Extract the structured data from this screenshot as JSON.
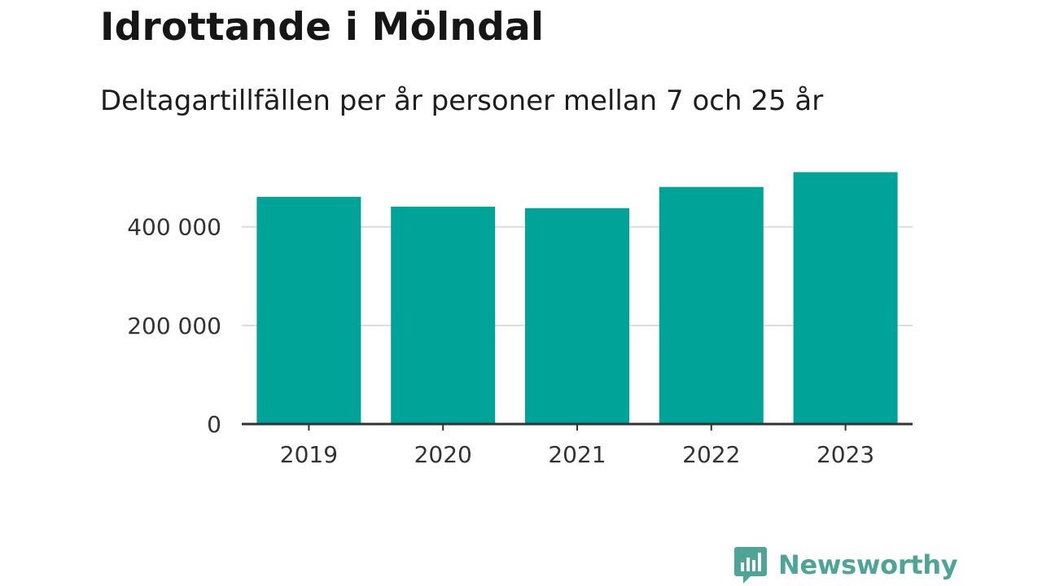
{
  "chart_data": {
    "type": "bar",
    "title": "Idrottande i Mölndal",
    "subtitle": "Deltagartillfällen per år personer mellan 7 och 25 år",
    "xlabel": "",
    "ylabel": "",
    "categories": [
      "2019",
      "2020",
      "2021",
      "2022",
      "2023"
    ],
    "values": [
      461000,
      441000,
      438000,
      481000,
      511000
    ],
    "ylim": [
      0,
      530000
    ],
    "yticks": [
      0,
      200000,
      400000
    ],
    "ytick_labels": [
      "0",
      "200 000",
      "400 000"
    ],
    "grid": "horizontal",
    "bar_color": "#00a398"
  },
  "branding": {
    "name": "Newsworthy",
    "icon": "bar-chart-speech-bubble-icon",
    "color": "#4ea497"
  }
}
